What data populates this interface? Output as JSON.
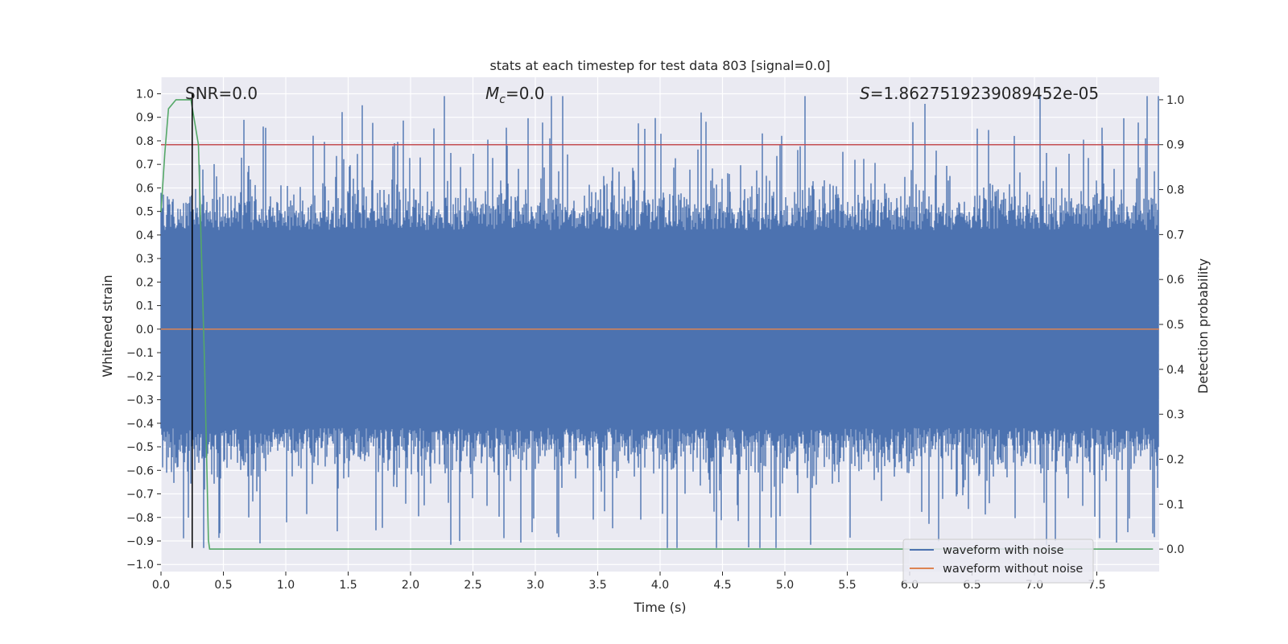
{
  "chart_data": {
    "type": "line",
    "title": "stats at each timestep for test data 803 [signal=0.0]",
    "xlabel": "Time (s)",
    "ylabel": "Whitened strain",
    "y2label": "Detection probability",
    "xlim": [
      0.0,
      8.0
    ],
    "ylim": [
      -1.03,
      1.07
    ],
    "y2lim": [
      -0.05,
      1.05
    ],
    "xticks": [
      0.0,
      0.5,
      1.0,
      1.5,
      2.0,
      2.5,
      3.0,
      3.5,
      4.0,
      4.5,
      5.0,
      5.5,
      6.0,
      6.5,
      7.0,
      7.5
    ],
    "xtick_labels": [
      "0.0",
      "0.5",
      "1.0",
      "1.5",
      "2.0",
      "2.5",
      "3.0",
      "3.5",
      "4.0",
      "4.5",
      "5.0",
      "5.5",
      "6.0",
      "6.5",
      "7.0",
      "7.5"
    ],
    "yticks": [
      -1.0,
      -0.9,
      -0.8,
      -0.7,
      -0.6,
      -0.5,
      -0.4,
      -0.3,
      -0.2,
      -0.1,
      0.0,
      0.1,
      0.2,
      0.3,
      0.4,
      0.5,
      0.6,
      0.7,
      0.8,
      0.9,
      1.0
    ],
    "ytick_labels": [
      "−1.0",
      "−0.9",
      "−0.8",
      "−0.7",
      "−0.6",
      "−0.5",
      "−0.4",
      "−0.3",
      "−0.2",
      "−0.1",
      "0.0",
      "0.1",
      "0.2",
      "0.3",
      "0.4",
      "0.5",
      "0.6",
      "0.7",
      "0.8",
      "0.9",
      "1.0"
    ],
    "y2ticks": [
      0.0,
      0.1,
      0.2,
      0.3,
      0.4,
      0.5,
      0.6,
      0.7,
      0.8,
      0.9,
      1.0
    ],
    "y2tick_labels": [
      "0.0",
      "0.1",
      "0.2",
      "0.3",
      "0.4",
      "0.5",
      "0.6",
      "0.7",
      "0.8",
      "0.9",
      "1.0"
    ],
    "grid": true,
    "legend_position": "bottom-right",
    "series": [
      {
        "name": "waveform with noise",
        "color": "#4c72b0",
        "description": "dense whitened noise, envelope values sampled",
        "x": [
          0.0,
          8.0
        ],
        "upper_envelope_approx": 0.45,
        "lower_envelope_approx": -0.45
      },
      {
        "name": "waveform without noise",
        "color": "#dd8452",
        "x": [
          0.0,
          8.0
        ],
        "y": [
          0.0,
          0.0
        ]
      },
      {
        "name": "detection probability",
        "color": "#55a868",
        "axis": "right",
        "x": [
          0.0,
          0.03,
          0.06,
          0.12,
          0.24,
          0.3,
          0.35,
          0.38,
          0.39,
          7.95
        ],
        "y": [
          0.75,
          0.88,
          0.98,
          1.0,
          1.0,
          0.9,
          0.4,
          0.02,
          0.0,
          0.0
        ]
      }
    ],
    "threshold_line": {
      "y2": 0.9,
      "color": "#c44e52"
    },
    "marker_line": {
      "x": 0.25,
      "color": "#000000",
      "y_from": -0.93,
      "y_to": 1.0
    },
    "annotations": {
      "snr": "SNR=0.0",
      "mc_symbol": "M",
      "mc_sub": "c",
      "mc_value": "=0.0",
      "s_symbol": "S",
      "s_value": "=1.8627519239089452e-05"
    }
  }
}
